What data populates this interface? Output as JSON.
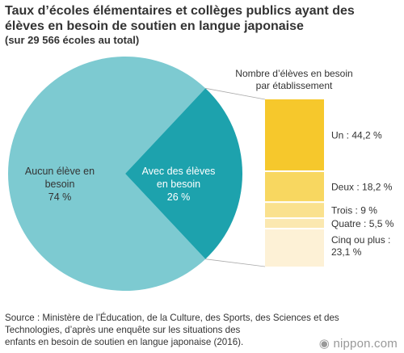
{
  "header": {
    "title_line1": "Taux d’écoles élémentaires et collèges publics ayant des",
    "title_line2": "élèves en besoin de soutien en langue japonaise",
    "subtitle": "(sur 29 566 écoles au total)"
  },
  "chart_data": [
    {
      "type": "pie",
      "slices": [
        {
          "label_line1": "Aucun élève en",
          "label_line2": "besoin",
          "value": 74,
          "value_text": "74 %",
          "color": "#7dcad1",
          "text_color": "#333333"
        },
        {
          "label_line1": "Avec des élèves",
          "label_line2": "en besoin",
          "value": 26,
          "value_text": "26 %",
          "color": "#1da2ad",
          "text_color": "#ffffff"
        }
      ]
    },
    {
      "type": "bar",
      "orientation": "stacked-vertical",
      "title_line1": "Nombre d’élèves en besoin",
      "title_line2": "par établissement",
      "segments": [
        {
          "label": "Un : 44,2 %",
          "value": 44.2,
          "color": "#f6c82c"
        },
        {
          "label": "Deux : 18,2 %",
          "value": 18.2,
          "color": "#f8d760"
        },
        {
          "label": "Trois : 9 %",
          "value": 9.0,
          "color": "#fae18e"
        },
        {
          "label": "Quatre : 5,5 %",
          "value": 5.5,
          "color": "#fbe8b0"
        },
        {
          "label_line1": "Cinq ou plus :",
          "label_line2": "23,1 %",
          "value": 23.1,
          "color": "#fdf1d6"
        }
      ]
    }
  ],
  "footer": {
    "source_line1": "Source : Ministère de l’Éducation, de la Culture, des Sports, des Sciences et des",
    "source_line2": "Technologies, d’après une enquête sur les situations des",
    "source_line3": "enfants en besoin de soutien en langue japonaise (2016).",
    "logo_text": "nippon.com"
  }
}
